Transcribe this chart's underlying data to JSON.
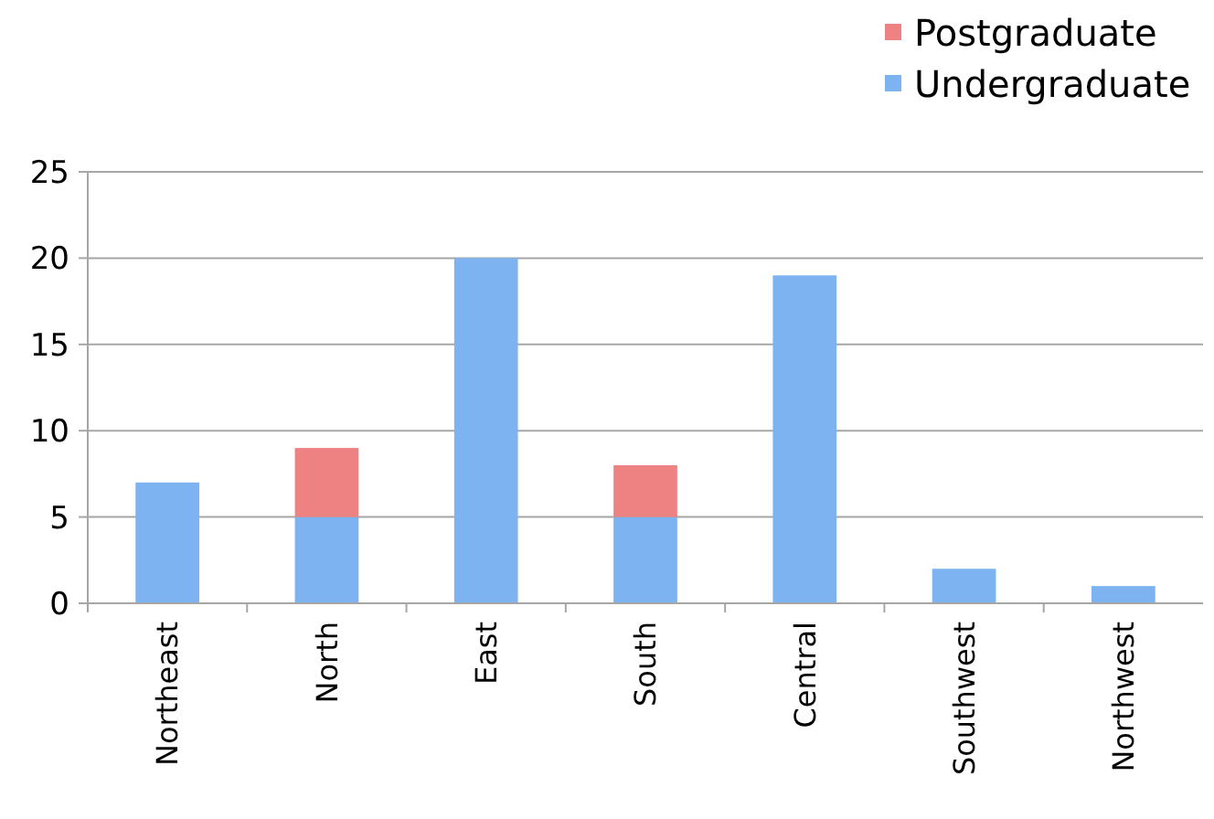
{
  "chart_data": {
    "type": "bar",
    "stacked": true,
    "categories": [
      "Northeast",
      "North",
      "East",
      "South",
      "Central",
      "Southwest",
      "Northwest"
    ],
    "series": [
      {
        "name": "Undergraduate",
        "color": "#7db3f0",
        "values": [
          7,
          5,
          20,
          5,
          19,
          2,
          1
        ]
      },
      {
        "name": "Postgraduate",
        "color": "#ee8282",
        "values": [
          0,
          4,
          0,
          3,
          0,
          0,
          0
        ]
      }
    ],
    "ylim": [
      0,
      25
    ],
    "yticks": [
      0,
      5,
      10,
      15,
      20,
      25
    ],
    "grid": "y",
    "legend": "top right"
  }
}
